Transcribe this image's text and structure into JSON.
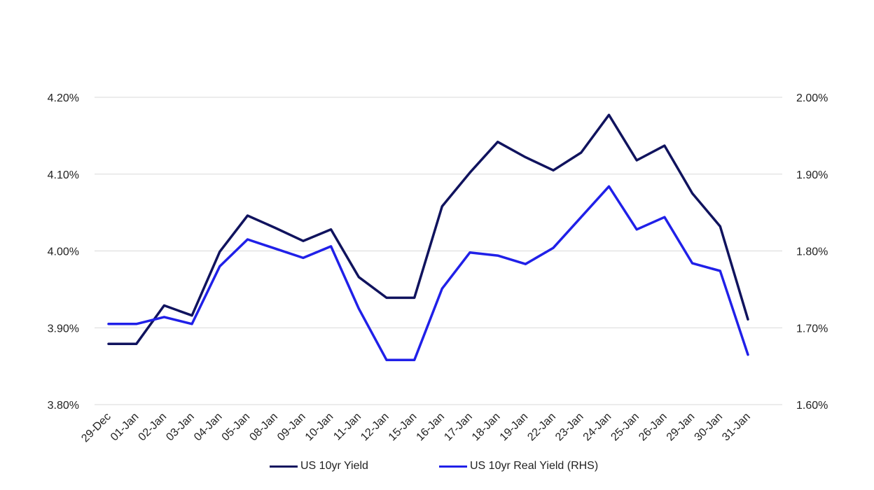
{
  "chart_data": {
    "type": "line",
    "categories": [
      "29-Dec",
      "01-Jan",
      "02-Jan",
      "03-Jan",
      "04-Jan",
      "05-Jan",
      "08-Jan",
      "09-Jan",
      "10-Jan",
      "11-Jan",
      "12-Jan",
      "15-Jan",
      "16-Jan",
      "17-Jan",
      "18-Jan",
      "19-Jan",
      "22-Jan",
      "23-Jan",
      "24-Jan",
      "25-Jan",
      "26-Jan",
      "29-Jan",
      "30-Jan",
      "31-Jan"
    ],
    "y_left": {
      "ticks": [
        "3.80%",
        "3.90%",
        "4.00%",
        "4.10%",
        "4.20%"
      ],
      "range": [
        3.8,
        4.2
      ]
    },
    "y_right": {
      "ticks": [
        "1.60%",
        "1.70%",
        "1.80%",
        "1.90%",
        "2.00%"
      ],
      "range": [
        1.6,
        2.0
      ]
    },
    "grid": "horizontal",
    "legend_position": "bottom",
    "series": [
      {
        "name": "US 10yr Yield",
        "axis": "left",
        "color": "#10135e",
        "values": [
          3.879,
          3.879,
          3.929,
          3.916,
          3.999,
          4.046,
          4.03,
          4.013,
          4.028,
          3.966,
          3.939,
          3.939,
          4.058,
          4.102,
          4.142,
          4.122,
          4.105,
          4.128,
          4.177,
          4.118,
          4.137,
          4.075,
          4.032,
          3.911
        ]
      },
      {
        "name": "US 10yr Real Yield (RHS)",
        "axis": "right",
        "color": "#2020e8",
        "values": [
          1.705,
          1.705,
          1.714,
          1.705,
          1.78,
          1.815,
          1.803,
          1.791,
          1.806,
          1.725,
          1.658,
          1.658,
          1.751,
          1.798,
          1.794,
          1.783,
          1.804,
          1.844,
          1.884,
          1.828,
          1.844,
          1.784,
          1.774,
          1.665
        ]
      }
    ]
  },
  "legend": {
    "items": [
      {
        "label": "US 10yr Yield",
        "color": "#10135e"
      },
      {
        "label": "US 10yr Real Yield (RHS)",
        "color": "#2020e8"
      }
    ]
  }
}
